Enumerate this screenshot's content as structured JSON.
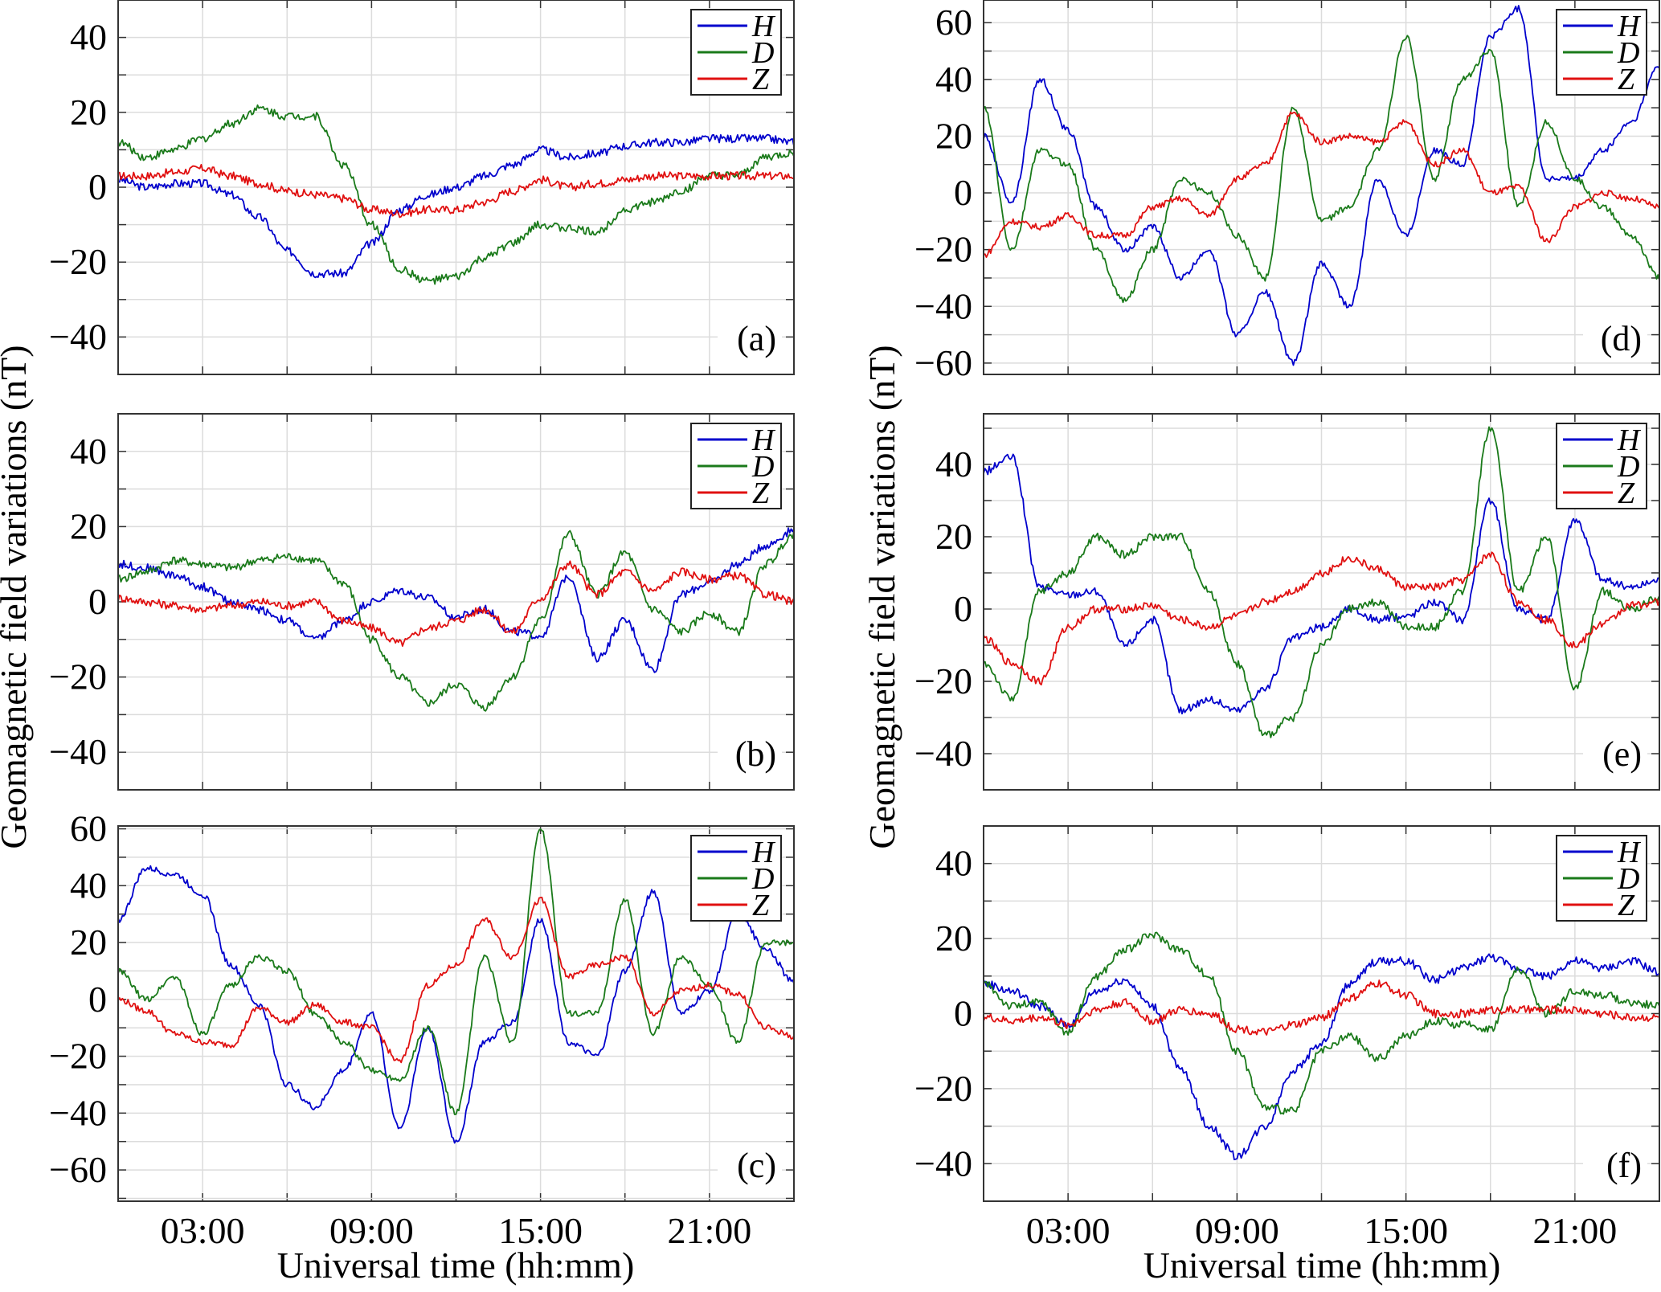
{
  "figure": {
    "ylabel": "Geomagnetic field variations (nT)",
    "xlabel": "Universal time (hh:mm)"
  },
  "chart_data": [
    {
      "type": "line",
      "panel": "(a)",
      "xlabel": "",
      "ylabel": "Geomagnetic field variations (nT)",
      "xlim": [
        0,
        24
      ],
      "ylim": [
        -50,
        50
      ],
      "yticks": [
        -40,
        -20,
        0,
        20,
        40
      ],
      "yticklabels": [
        "−40",
        "−20",
        "0",
        "20",
        "40"
      ],
      "xticks": [
        3,
        9,
        15,
        21
      ],
      "xticklabels": [],
      "grid": true,
      "legend": "top-right",
      "x": [
        0,
        1,
        2,
        3,
        4,
        5,
        6,
        7,
        8,
        9,
        10,
        11,
        12,
        13,
        14,
        15,
        16,
        17,
        18,
        19,
        20,
        21,
        22,
        23,
        24
      ],
      "series": [
        {
          "name": "H",
          "color": "#0000cc",
          "values": [
            2,
            0,
            1,
            1,
            -2,
            -8,
            -17,
            -23,
            -23,
            -15,
            -6,
            -2,
            0,
            3,
            6,
            10,
            8,
            9,
            11,
            12,
            12,
            13,
            13,
            13,
            12
          ]
        },
        {
          "name": "D",
          "color": "#1a7a1a",
          "values": [
            12,
            8,
            10,
            13,
            17,
            21,
            19,
            19,
            6,
            -10,
            -22,
            -25,
            -24,
            -19,
            -15,
            -10,
            -11,
            -12,
            -6,
            -4,
            -1,
            3,
            3,
            8,
            9
          ]
        },
        {
          "name": "Z",
          "color": "#e01010",
          "values": [
            3,
            3,
            4,
            5,
            3,
            1,
            -1,
            -2,
            -3,
            -6,
            -7,
            -6,
            -6,
            -4,
            -1,
            2,
            0,
            1,
            2,
            3,
            3,
            3,
            3,
            3,
            3
          ]
        }
      ]
    },
    {
      "type": "line",
      "panel": "(b)",
      "xlabel": "",
      "ylabel": "Geomagnetic field variations (nT)",
      "xlim": [
        0,
        24
      ],
      "ylim": [
        -50,
        50
      ],
      "yticks": [
        -40,
        -20,
        0,
        20,
        40
      ],
      "yticklabels": [
        "−40",
        "−20",
        "0",
        "20",
        "40"
      ],
      "xticks": [
        3,
        9,
        15,
        21
      ],
      "xticklabels": [],
      "grid": true,
      "legend": "top-right",
      "x": [
        0,
        1,
        2,
        3,
        4,
        5,
        6,
        7,
        8,
        9,
        10,
        11,
        12,
        13,
        14,
        15,
        16,
        17,
        18,
        19,
        20,
        21,
        22,
        23,
        24
      ],
      "series": [
        {
          "name": "H",
          "color": "#0000cc",
          "values": [
            10,
            9,
            7,
            4,
            0,
            -2,
            -5,
            -10,
            -5,
            0,
            3,
            1,
            -4,
            -2,
            -8,
            -9,
            7,
            -15,
            -5,
            -18,
            2,
            5,
            10,
            15,
            19
          ]
        },
        {
          "name": "D",
          "color": "#1a7a1a",
          "values": [
            6,
            8,
            11,
            10,
            9,
            11,
            12,
            11,
            5,
            -10,
            -20,
            -27,
            -22,
            -28,
            -20,
            -5,
            18,
            2,
            13,
            -2,
            -8,
            -3,
            -8,
            10,
            18
          ]
        },
        {
          "name": "Z",
          "color": "#e01010",
          "values": [
            1,
            0,
            -1,
            -2,
            -1,
            0,
            -1,
            0,
            -5,
            -7,
            -11,
            -7,
            -5,
            -2,
            -8,
            1,
            10,
            2,
            8,
            3,
            8,
            6,
            7,
            2,
            0
          ]
        }
      ]
    },
    {
      "type": "line",
      "panel": "(c)",
      "xlabel": "Universal time (hh:mm)",
      "ylabel": "Geomagnetic field variations (nT)",
      "xlim": [
        0,
        24
      ],
      "ylim": [
        -71,
        61
      ],
      "yticks": [
        -60,
        -40,
        -20,
        0,
        20,
        40,
        60
      ],
      "yticklabels": [
        "−60",
        "−40",
        "−20",
        "0",
        "20",
        "40",
        "60"
      ],
      "xticks": [
        3,
        9,
        15,
        21
      ],
      "xticklabels": [
        "03:00",
        "09:00",
        "15:00",
        "21:00"
      ],
      "grid": true,
      "legend": "top-right",
      "x": [
        0,
        1,
        2,
        3,
        4,
        5,
        6,
        7,
        8,
        9,
        10,
        11,
        12,
        13,
        14,
        15,
        16,
        17,
        18,
        19,
        20,
        21,
        22,
        23,
        24
      ],
      "series": [
        {
          "name": "H",
          "color": "#0000cc",
          "values": [
            28,
            46,
            44,
            37,
            12,
            -2,
            -30,
            -38,
            -25,
            -5,
            -45,
            -10,
            -50,
            -15,
            -8,
            28,
            -15,
            -20,
            10,
            38,
            -5,
            3,
            30,
            18,
            6
          ]
        },
        {
          "name": "D",
          "color": "#1a7a1a",
          "values": [
            10,
            0,
            8,
            -12,
            5,
            15,
            10,
            -5,
            -15,
            -25,
            -28,
            -10,
            -40,
            15,
            -15,
            60,
            -5,
            -5,
            35,
            -12,
            15,
            5,
            -15,
            20,
            20
          ]
        },
        {
          "name": "Z",
          "color": "#e01010",
          "values": [
            0,
            -4,
            -12,
            -15,
            -16,
            -3,
            -8,
            -2,
            -8,
            -10,
            -22,
            5,
            12,
            28,
            15,
            35,
            8,
            12,
            15,
            -5,
            3,
            5,
            2,
            -10,
            -13
          ]
        }
      ]
    },
    {
      "type": "line",
      "panel": "(d)",
      "xlabel": "",
      "ylabel": "Geomagnetic field variations (nT)",
      "xlim": [
        0,
        24
      ],
      "ylim": [
        -64,
        68
      ],
      "yticks": [
        -60,
        -40,
        -20,
        0,
        20,
        40,
        60
      ],
      "yticklabels": [
        "−60",
        "−40",
        "−20",
        "0",
        "20",
        "40",
        "60"
      ],
      "xticks": [
        3,
        9,
        15,
        21
      ],
      "xticklabels": [],
      "grid": true,
      "legend": "top-right",
      "x": [
        0,
        1,
        2,
        3,
        4,
        5,
        6,
        7,
        8,
        9,
        10,
        11,
        12,
        13,
        14,
        15,
        16,
        17,
        18,
        19,
        20,
        21,
        22,
        23,
        24
      ],
      "series": [
        {
          "name": "H",
          "color": "#0000cc",
          "values": [
            20,
            -3,
            40,
            22,
            -5,
            -20,
            -12,
            -30,
            -20,
            -50,
            -35,
            -60,
            -25,
            -40,
            5,
            -15,
            15,
            10,
            55,
            65,
            5,
            5,
            15,
            25,
            45
          ]
        },
        {
          "name": "D",
          "color": "#1a7a1a",
          "values": [
            30,
            -20,
            15,
            10,
            -20,
            -38,
            -20,
            5,
            0,
            -15,
            -30,
            30,
            -10,
            -5,
            15,
            55,
            5,
            40,
            50,
            -5,
            25,
            5,
            -5,
            -15,
            -30
          ]
        },
        {
          "name": "Z",
          "color": "#e01010",
          "values": [
            -22,
            -10,
            -12,
            -8,
            -15,
            -15,
            -5,
            -2,
            -8,
            5,
            10,
            28,
            18,
            20,
            18,
            25,
            10,
            15,
            0,
            2,
            -17,
            -5,
            0,
            -2,
            -5
          ]
        }
      ]
    },
    {
      "type": "line",
      "panel": "(e)",
      "xlabel": "",
      "ylabel": "Geomagnetic field variations (nT)",
      "xlim": [
        0,
        24
      ],
      "ylim": [
        -50,
        54
      ],
      "yticks": [
        -40,
        -20,
        0,
        20,
        40
      ],
      "yticklabels": [
        "−40",
        "−20",
        "0",
        "20",
        "40"
      ],
      "xticks": [
        3,
        9,
        15,
        21
      ],
      "xticklabels": [],
      "grid": true,
      "legend": "top-right",
      "x": [
        0,
        1,
        2,
        3,
        4,
        5,
        6,
        7,
        8,
        9,
        10,
        11,
        12,
        13,
        14,
        15,
        16,
        17,
        18,
        19,
        20,
        21,
        22,
        23,
        24
      ],
      "series": [
        {
          "name": "H",
          "color": "#0000cc",
          "values": [
            38,
            42,
            6,
            4,
            5,
            -10,
            -3,
            -28,
            -25,
            -28,
            -22,
            -8,
            -5,
            0,
            -3,
            -2,
            2,
            -3,
            30,
            0,
            -3,
            25,
            8,
            6,
            8
          ]
        },
        {
          "name": "D",
          "color": "#1a7a1a",
          "values": [
            -15,
            -25,
            5,
            10,
            20,
            15,
            20,
            20,
            5,
            -15,
            -35,
            -30,
            -10,
            0,
            2,
            -5,
            -5,
            5,
            50,
            5,
            20,
            -22,
            5,
            0,
            3
          ]
        },
        {
          "name": "Z",
          "color": "#e01010",
          "values": [
            -8,
            -15,
            -20,
            -5,
            0,
            0,
            1,
            -3,
            -5,
            -2,
            2,
            5,
            10,
            14,
            11,
            6,
            6,
            8,
            15,
            2,
            -3,
            -10,
            -4,
            1,
            2
          ]
        }
      ]
    },
    {
      "type": "line",
      "panel": "(f)",
      "xlabel": "Universal time (hh:mm)",
      "ylabel": "Geomagnetic field variations (nT)",
      "xlim": [
        0,
        24
      ],
      "ylim": [
        -50,
        50
      ],
      "yticks": [
        -40,
        -20,
        0,
        20,
        40
      ],
      "yticklabels": [
        "−40",
        "−20",
        "0",
        "20",
        "40"
      ],
      "xticks": [
        3,
        9,
        15,
        21
      ],
      "xticklabels": [
        "03:00",
        "09:00",
        "15:00",
        "21:00"
      ],
      "grid": true,
      "legend": "top-right",
      "x": [
        0,
        1,
        2,
        3,
        4,
        5,
        6,
        7,
        8,
        9,
        10,
        11,
        12,
        13,
        14,
        15,
        16,
        17,
        18,
        19,
        20,
        21,
        22,
        23,
        24
      ],
      "series": [
        {
          "name": "H",
          "color": "#0000cc",
          "values": [
            8,
            6,
            2,
            -3,
            6,
            9,
            2,
            -15,
            -30,
            -38,
            -30,
            -15,
            -8,
            8,
            14,
            14,
            9,
            12,
            15,
            12,
            10,
            14,
            12,
            14,
            11
          ]
        },
        {
          "name": "D",
          "color": "#1a7a1a",
          "values": [
            8,
            2,
            3,
            -5,
            10,
            17,
            21,
            17,
            10,
            -10,
            -25,
            -26,
            -10,
            -6,
            -12,
            -6,
            -2,
            -3,
            -4,
            12,
            0,
            6,
            5,
            3,
            2
          ]
        },
        {
          "name": "Z",
          "color": "#e01010",
          "values": [
            -1,
            -2,
            -1,
            -3,
            1,
            3,
            -2,
            1,
            0,
            -4,
            -5,
            -3,
            -1,
            4,
            8,
            5,
            0,
            0,
            1,
            1,
            1,
            1,
            0,
            -1,
            -1
          ]
        }
      ]
    }
  ]
}
